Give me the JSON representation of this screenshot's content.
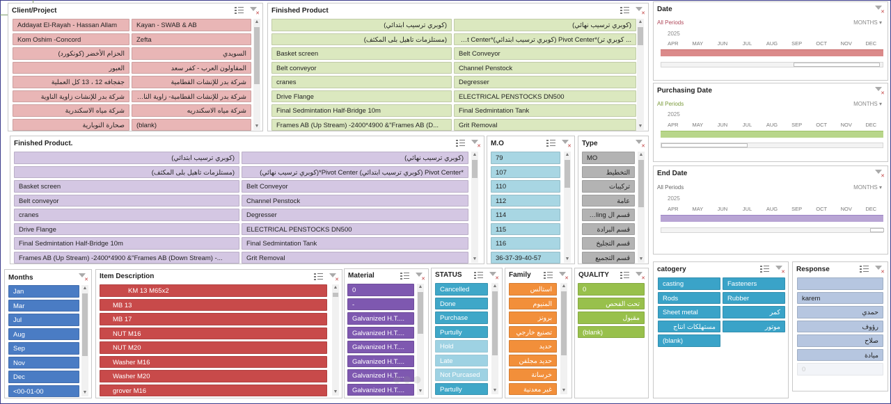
{
  "colors": {
    "client": "#e9b6b6",
    "finished": "#dbe8bf",
    "finished2": "#d4c7e3",
    "mo": "#a8d6e3",
    "type": "#b3b3b3",
    "months": "#4a7cc4",
    "item": "#c84a4a",
    "material": "#7e58b0",
    "status": "#3fa7c8",
    "family": "#f28f3a",
    "quality": "#98c04c",
    "category": "#3aa3c8",
    "response": "#b6c6e0"
  },
  "client": {
    "title": "Client/Project",
    "items": [
      "Addayat El-Rayah - Hassan Allam",
      "Kayan - SWAB & AB",
      "Kom Oshim -Concord",
      "Zefta",
      "الحزام الأخضر (كونكورد)",
      "السويدي",
      "العبور",
      "المقاولون العرب - كفر سعد",
      "جفجافه 12 ، 13 كل العملية",
      "شركة بدر للإنشات القطامية",
      "شركة بدر للإنشات زاوية الناوية",
      "شركة بدر للإنشات القطامية- زاوية الناوية",
      "شركة مياه الاسكندرية",
      "شركة مياه الاسكندريه",
      "صحارة النوبارية",
      "(blank)"
    ]
  },
  "finished": {
    "title": "Finished Product",
    "items": [
      "(كوبري ترسيب ابتدائي)",
      "(كوبري ترسيب نهائي)",
      "(مستلزمات تاهيل بلى المكثف)",
      "... كوبري تر)*Pivot Center (كوبري ترسيب ابتدائي)*Pivot Center",
      "Basket screen",
      "Belt Conveyor",
      "Belt conveyor",
      "Channel Penstock",
      "cranes",
      "Degresser",
      "Drive Flange",
      "ELECTRICAL PENSTOCKS DN500",
      "Final Sedmintation Half-Bridge 10m",
      "Final Sedmintation Tank",
      "Frames AB (Up Stream) -2400*4900 &\"Frames AB (D...",
      "Grit Removal"
    ]
  },
  "finished2": {
    "title": "Finished Product.",
    "items": [
      "(كوبري ترسيب ابتدائي)",
      "(كوبري ترسيب نهائي)",
      "(مستلزمات تاهيل بلى المكثف)",
      "*Pivot Center (كوبري ترسيب ابتدائي) Pivot Center*(كوبري ترسيب نهائي)",
      "Basket screen",
      "Belt Conveyor",
      "Belt conveyor",
      "Channel Penstock",
      "cranes",
      "Degresser",
      "Drive Flange",
      "ELECTRICAL PENSTOCKS DN500",
      "Final Sedmintation Half-Bridge 10m",
      "Final Sedmintation Tank",
      "Frames AB (Up Stream) -2400*4900 &\"Frames AB (Down Stream) -...",
      "Grit Removal"
    ]
  },
  "mo": {
    "title": "M.O",
    "items": [
      "79",
      "107",
      "110",
      "112",
      "114",
      "115",
      "116",
      "36-37-39-40-57"
    ]
  },
  "type": {
    "title": "Type",
    "items": [
      "MO",
      "التخطيط",
      "تركيبات",
      "عامة",
      "قسم ال Pickling",
      "قسم البرادة",
      "قسم التجليخ",
      "قسم التجميع"
    ]
  },
  "date": {
    "title": "Date",
    "periods": "All Periods",
    "unit": "MONTHS",
    "year": "2025",
    "months": [
      "APR",
      "MAY",
      "JUN",
      "JUL",
      "AUG",
      "SEP",
      "OCT",
      "NOV",
      "DEC"
    ]
  },
  "purchasing": {
    "title": "Purchasing Date",
    "periods": "All Periods",
    "unit": "MONTHS",
    "year": "2025",
    "months": [
      "APR",
      "MAY",
      "JUN",
      "JUL",
      "AUG",
      "SEP",
      "OCT",
      "NOV",
      "DEC"
    ]
  },
  "enddate": {
    "title": "End Date",
    "periods": "All Periods",
    "unit": "MONTHS",
    "year": "2025",
    "months": [
      "APR",
      "MAY",
      "JUN",
      "JUL",
      "AUG",
      "SEP",
      "OCT",
      "NOV",
      "DEC"
    ]
  },
  "months": {
    "title": "Months",
    "items": [
      "Jan",
      "Mar",
      "Jul",
      "Aug",
      "Sep",
      "Nov",
      "Dec",
      "<00-01-00"
    ]
  },
  "item": {
    "title": "Item Description",
    "items": [
      "KM 13    M65x2",
      "MB  13",
      "MB  17",
      "NUT M16",
      "NUT M20",
      "Washer M16",
      "Washer M20",
      "grover M16"
    ]
  },
  "material": {
    "title": "Material",
    "items": [
      "0",
      "-",
      "Galvanized H.T....",
      "Galvanized H.T....",
      "Galvanized H.T....",
      "Galvanized H.T....",
      "Galvanized H.T....",
      "Galvanized H.T...."
    ]
  },
  "status": {
    "title": "STATUS",
    "items": [
      "Cancelled",
      "Done",
      "Purchase",
      "Purtully",
      "Hold",
      "Late",
      "Not Purcased",
      "Partully"
    ]
  },
  "family": {
    "title": "Family",
    "items": [
      "استالس",
      "المنيوم",
      "برونز",
      "تصنيع خارجي",
      "حديد",
      "حديد مجلفن",
      "خرسانة",
      "غير معدنية"
    ]
  },
  "quality": {
    "title": "QUALITY",
    "items": [
      "0",
      "تحت الفحص",
      "مقبول",
      "(blank)"
    ]
  },
  "category": {
    "title": "catogery",
    "items": [
      "casting",
      "Fasteners",
      "Rods",
      "Rubber",
      "Sheet metal",
      "كمر",
      "مستهلكات انتاج",
      "موتور",
      "(blank)"
    ]
  },
  "response": {
    "title": "Response",
    "items": [
      "",
      "karem",
      "حمدي",
      "رؤوف",
      "صلاح",
      "ميادة",
      "0"
    ]
  }
}
